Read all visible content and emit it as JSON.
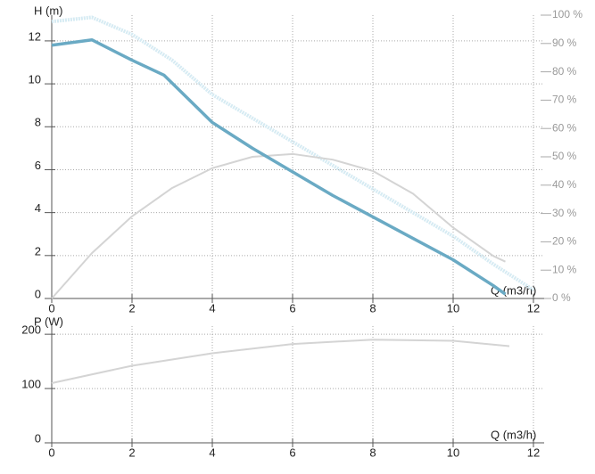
{
  "chart_data": [
    {
      "type": "line",
      "ylabel": "H (m)",
      "xlabel": "Q (m3/h)",
      "xlim": [
        0,
        12
      ],
      "xticks": [
        0,
        2,
        4,
        6,
        8,
        10,
        12
      ],
      "ylim": [
        0,
        13.2
      ],
      "yticks": [
        0,
        2,
        4,
        6,
        8,
        10,
        12
      ],
      "y2lim": [
        0,
        100
      ],
      "y2ticks": [
        {
          "value": 0,
          "label": "0 %"
        },
        {
          "value": 10,
          "label": "10 %"
        },
        {
          "value": 20,
          "label": "20 %"
        },
        {
          "value": 30,
          "label": "30 %"
        },
        {
          "value": 40,
          "label": "40 %"
        },
        {
          "value": 50,
          "label": "50 %"
        },
        {
          "value": 60,
          "label": "60 %"
        },
        {
          "value": 70,
          "label": "70 %"
        },
        {
          "value": 80,
          "label": "80 %"
        },
        {
          "value": 90,
          "label": "90 %"
        },
        {
          "value": 100,
          "label": "100 %"
        }
      ],
      "grid": true,
      "series": [
        {
          "color": "#d6ebf3",
          "line_style": "dotted",
          "x": [
            0,
            1,
            2,
            3,
            4,
            5,
            6,
            7,
            8,
            9,
            10,
            11,
            12
          ],
          "values": [
            12.9,
            13.1,
            12.3,
            11.1,
            9.5,
            8.4,
            7.3,
            6.2,
            5.1,
            4.0,
            2.9,
            1.6,
            0.4
          ]
        },
        {
          "color": "#d4d4d4",
          "line_style": "solid",
          "axis": "y2",
          "x": [
            0,
            1,
            2,
            3,
            4,
            5,
            6,
            7,
            8,
            9,
            10,
            11,
            11.3
          ],
          "values": [
            0,
            16,
            29,
            39,
            46,
            50,
            51,
            49,
            45,
            37,
            25,
            15,
            13
          ]
        },
        {
          "color": "#6aaac4",
          "line_style": "solid",
          "x": [
            0,
            1,
            2,
            2.8,
            4,
            5,
            6,
            7,
            8,
            9,
            10,
            11,
            11.3
          ],
          "values": [
            11.8,
            12.05,
            11.1,
            10.4,
            8.2,
            7.0,
            5.9,
            4.8,
            3.8,
            2.8,
            1.8,
            0.6,
            0.2
          ]
        }
      ]
    },
    {
      "type": "line",
      "ylabel": "P (W)",
      "xlabel": "Q (m3/h)",
      "xlim": [
        0,
        12
      ],
      "xticks": [
        0,
        2,
        4,
        6,
        8,
        10,
        12
      ],
      "ylim": [
        0,
        215
      ],
      "yticks": [
        0,
        100,
        200
      ],
      "grid": true,
      "series": [
        {
          "color": "#d4d4d4",
          "line_style": "solid",
          "x": [
            0,
            2,
            4,
            6,
            8,
            10,
            11.4
          ],
          "values": [
            110,
            142,
            165,
            182,
            190,
            188,
            178
          ]
        }
      ]
    }
  ]
}
